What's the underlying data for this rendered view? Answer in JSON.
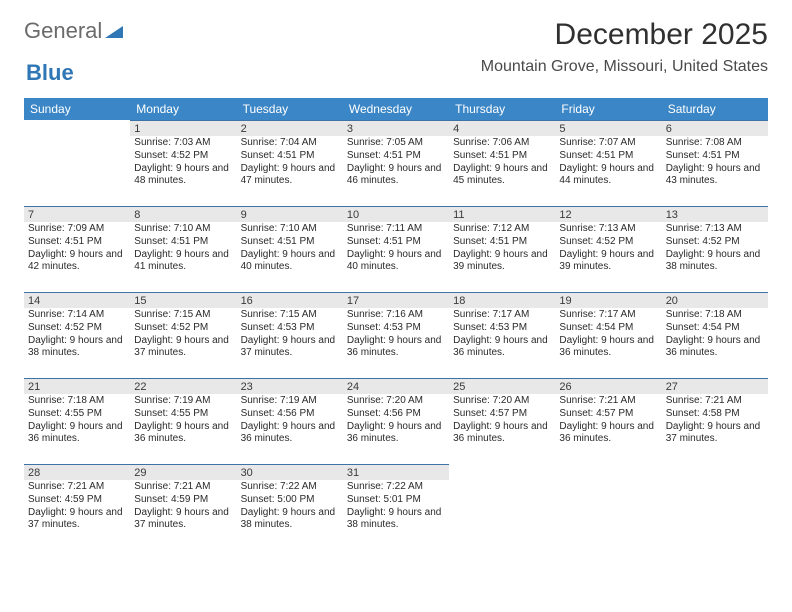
{
  "brand": {
    "part1": "General",
    "part2": "Blue"
  },
  "title": "December 2025",
  "subtitle": "Mountain Grove, Missouri, United States",
  "weekdays": [
    "Sunday",
    "Monday",
    "Tuesday",
    "Wednesday",
    "Thursday",
    "Friday",
    "Saturday"
  ],
  "colors": {
    "header_bg": "#3b86c6",
    "header_text": "#ffffff",
    "daynum_bg": "#e8e8e8",
    "daynum_border": "#3b73a6",
    "text": "#2a2a2a",
    "title_text": "#303030"
  },
  "layout": {
    "first_weekday_index": 1,
    "num_weeks": 5
  },
  "days": [
    {
      "n": 1,
      "sunrise": "7:03 AM",
      "sunset": "4:52 PM",
      "daylight": "9 hours and 48 minutes."
    },
    {
      "n": 2,
      "sunrise": "7:04 AM",
      "sunset": "4:51 PM",
      "daylight": "9 hours and 47 minutes."
    },
    {
      "n": 3,
      "sunrise": "7:05 AM",
      "sunset": "4:51 PM",
      "daylight": "9 hours and 46 minutes."
    },
    {
      "n": 4,
      "sunrise": "7:06 AM",
      "sunset": "4:51 PM",
      "daylight": "9 hours and 45 minutes."
    },
    {
      "n": 5,
      "sunrise": "7:07 AM",
      "sunset": "4:51 PM",
      "daylight": "9 hours and 44 minutes."
    },
    {
      "n": 6,
      "sunrise": "7:08 AM",
      "sunset": "4:51 PM",
      "daylight": "9 hours and 43 minutes."
    },
    {
      "n": 7,
      "sunrise": "7:09 AM",
      "sunset": "4:51 PM",
      "daylight": "9 hours and 42 minutes."
    },
    {
      "n": 8,
      "sunrise": "7:10 AM",
      "sunset": "4:51 PM",
      "daylight": "9 hours and 41 minutes."
    },
    {
      "n": 9,
      "sunrise": "7:10 AM",
      "sunset": "4:51 PM",
      "daylight": "9 hours and 40 minutes."
    },
    {
      "n": 10,
      "sunrise": "7:11 AM",
      "sunset": "4:51 PM",
      "daylight": "9 hours and 40 minutes."
    },
    {
      "n": 11,
      "sunrise": "7:12 AM",
      "sunset": "4:51 PM",
      "daylight": "9 hours and 39 minutes."
    },
    {
      "n": 12,
      "sunrise": "7:13 AM",
      "sunset": "4:52 PM",
      "daylight": "9 hours and 39 minutes."
    },
    {
      "n": 13,
      "sunrise": "7:13 AM",
      "sunset": "4:52 PM",
      "daylight": "9 hours and 38 minutes."
    },
    {
      "n": 14,
      "sunrise": "7:14 AM",
      "sunset": "4:52 PM",
      "daylight": "9 hours and 38 minutes."
    },
    {
      "n": 15,
      "sunrise": "7:15 AM",
      "sunset": "4:52 PM",
      "daylight": "9 hours and 37 minutes."
    },
    {
      "n": 16,
      "sunrise": "7:15 AM",
      "sunset": "4:53 PM",
      "daylight": "9 hours and 37 minutes."
    },
    {
      "n": 17,
      "sunrise": "7:16 AM",
      "sunset": "4:53 PM",
      "daylight": "9 hours and 36 minutes."
    },
    {
      "n": 18,
      "sunrise": "7:17 AM",
      "sunset": "4:53 PM",
      "daylight": "9 hours and 36 minutes."
    },
    {
      "n": 19,
      "sunrise": "7:17 AM",
      "sunset": "4:54 PM",
      "daylight": "9 hours and 36 minutes."
    },
    {
      "n": 20,
      "sunrise": "7:18 AM",
      "sunset": "4:54 PM",
      "daylight": "9 hours and 36 minutes."
    },
    {
      "n": 21,
      "sunrise": "7:18 AM",
      "sunset": "4:55 PM",
      "daylight": "9 hours and 36 minutes."
    },
    {
      "n": 22,
      "sunrise": "7:19 AM",
      "sunset": "4:55 PM",
      "daylight": "9 hours and 36 minutes."
    },
    {
      "n": 23,
      "sunrise": "7:19 AM",
      "sunset": "4:56 PM",
      "daylight": "9 hours and 36 minutes."
    },
    {
      "n": 24,
      "sunrise": "7:20 AM",
      "sunset": "4:56 PM",
      "daylight": "9 hours and 36 minutes."
    },
    {
      "n": 25,
      "sunrise": "7:20 AM",
      "sunset": "4:57 PM",
      "daylight": "9 hours and 36 minutes."
    },
    {
      "n": 26,
      "sunrise": "7:21 AM",
      "sunset": "4:57 PM",
      "daylight": "9 hours and 36 minutes."
    },
    {
      "n": 27,
      "sunrise": "7:21 AM",
      "sunset": "4:58 PM",
      "daylight": "9 hours and 37 minutes."
    },
    {
      "n": 28,
      "sunrise": "7:21 AM",
      "sunset": "4:59 PM",
      "daylight": "9 hours and 37 minutes."
    },
    {
      "n": 29,
      "sunrise": "7:21 AM",
      "sunset": "4:59 PM",
      "daylight": "9 hours and 37 minutes."
    },
    {
      "n": 30,
      "sunrise": "7:22 AM",
      "sunset": "5:00 PM",
      "daylight": "9 hours and 38 minutes."
    },
    {
      "n": 31,
      "sunrise": "7:22 AM",
      "sunset": "5:01 PM",
      "daylight": "9 hours and 38 minutes."
    }
  ],
  "labels": {
    "sunrise": "Sunrise:",
    "sunset": "Sunset:",
    "daylight": "Daylight:"
  }
}
